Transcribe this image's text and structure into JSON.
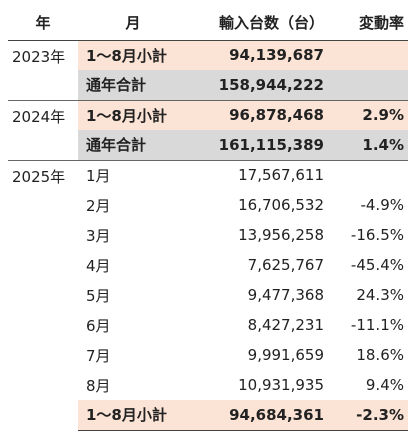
{
  "header": {
    "year": "年",
    "month": "月",
    "value": "輸入台数（台）",
    "rate": "変動率"
  },
  "rows": [
    {
      "year": "2023年",
      "month": "1～8月小計",
      "value": "94,139,687",
      "rate": ""
    },
    {
      "year": "",
      "month": "通年合計",
      "value": "158,944,222",
      "rate": ""
    },
    {
      "year": "2024年",
      "month": "1～8月小計",
      "value": "96,878,468",
      "rate": "2.9%"
    },
    {
      "year": "",
      "month": "通年合計",
      "value": "161,115,389",
      "rate": "1.4%"
    },
    {
      "year": "2025年",
      "month": "1月",
      "value": "17,567,611",
      "rate": ""
    },
    {
      "year": "",
      "month": "2月",
      "value": "16,706,532",
      "rate": "-4.9%"
    },
    {
      "year": "",
      "month": "3月",
      "value": "13,956,258",
      "rate": "-16.5%"
    },
    {
      "year": "",
      "month": "4月",
      "value": "7,625,767",
      "rate": "-45.4%"
    },
    {
      "year": "",
      "month": "5月",
      "value": "9,477,368",
      "rate": "24.3%"
    },
    {
      "year": "",
      "month": "6月",
      "value": "8,427,231",
      "rate": "-11.1%"
    },
    {
      "year": "",
      "month": "7月",
      "value": "9,991,659",
      "rate": "18.6%"
    },
    {
      "year": "",
      "month": "8月",
      "value": "10,931,935",
      "rate": "9.4%"
    },
    {
      "year": "",
      "month": "1～8月小計",
      "value": "94,684,361",
      "rate": "-2.3%"
    }
  ],
  "colors": {
    "subtotal_fill": "#fbe3d6",
    "annual_total_fill": "#d9d9d9"
  }
}
